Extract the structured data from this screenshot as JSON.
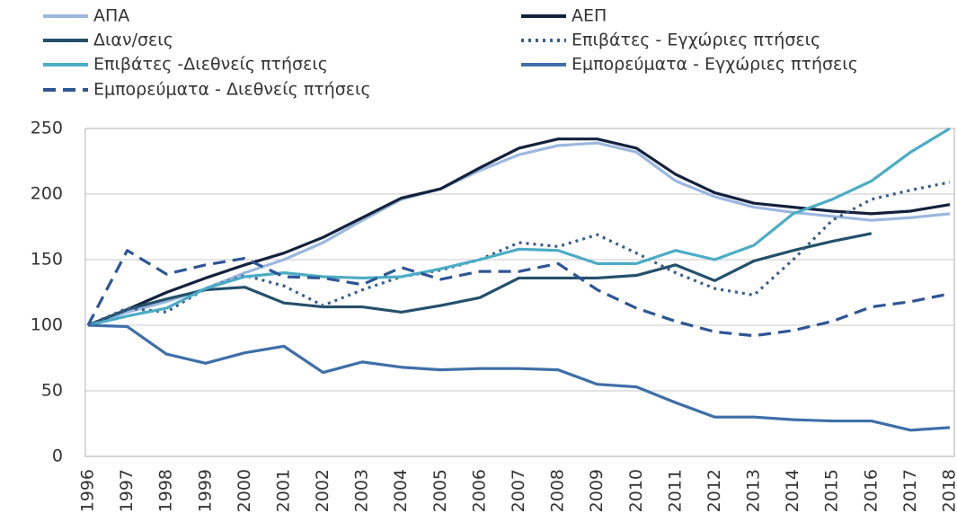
{
  "chart_data": {
    "type": "line",
    "categories": [
      "1996",
      "1997",
      "1998",
      "1999",
      "2000",
      "2001",
      "2002",
      "2003",
      "2004",
      "2005",
      "2006",
      "2007",
      "2008",
      "2009",
      "2010",
      "2011",
      "2012",
      "2013",
      "2014",
      "2015",
      "2016",
      "2017",
      "2018"
    ],
    "series": [
      {
        "name": "ΑΠΑ",
        "color": "#9bb7df",
        "dash": "solid",
        "values": [
          100,
          110,
          118,
          128,
          140,
          150,
          163,
          180,
          196,
          204,
          218,
          230,
          237,
          239,
          232,
          210,
          198,
          190,
          186,
          183,
          180,
          182,
          185
        ]
      },
      {
        "name": "ΑΕΠ",
        "color": "#14213d",
        "dash": "solid",
        "values": [
          100,
          112,
          125,
          136,
          146,
          155,
          167,
          182,
          197,
          204,
          220,
          235,
          242,
          242,
          235,
          215,
          201,
          193,
          190,
          187,
          185,
          187,
          192
        ]
      },
      {
        "name": "Διαν/σεις",
        "color": "#24506a",
        "dash": "solid",
        "values": [
          100,
          112,
          120,
          127,
          129,
          117,
          114,
          114,
          110,
          115,
          121,
          136,
          136,
          136,
          138,
          146,
          134,
          149,
          157,
          164,
          170,
          null,
          null
        ]
      },
      {
        "name": "Επιβάτες - Εγχώριες πτήσεις",
        "color": "#3a5e8c",
        "dash": "dotted",
        "values": [
          100,
          113,
          110,
          128,
          138,
          130,
          115,
          127,
          137,
          142,
          150,
          163,
          160,
          169,
          155,
          140,
          128,
          123,
          150,
          180,
          196,
          203,
          209
        ]
      },
      {
        "name": "Επιβάτες -Διεθνείς πτήσεις",
        "color": "#4bacc6",
        "dash": "solid",
        "values": [
          100,
          107,
          113,
          128,
          137,
          140,
          137,
          136,
          137,
          143,
          150,
          158,
          157,
          147,
          147,
          157,
          150,
          161,
          185,
          196,
          210,
          232,
          250
        ]
      },
      {
        "name": "Εμπορεύματα - Εγχώριες πτήσεις",
        "color": "#3e6fa8",
        "dash": "solid",
        "values": [
          100,
          99,
          78,
          71,
          79,
          84,
          64,
          72,
          68,
          66,
          67,
          67,
          66,
          55,
          53,
          41,
          30,
          30,
          28,
          27,
          27,
          20,
          22
        ]
      },
      {
        "name": "Εμπορεύματα - Διεθνείς πτήσεις",
        "color": "#2e5596",
        "dash": "dashed",
        "values": [
          100,
          157,
          139,
          146,
          151,
          137,
          136,
          131,
          144,
          135,
          141,
          141,
          147,
          127,
          113,
          103,
          95,
          92,
          96,
          103,
          114,
          118,
          124
        ]
      }
    ],
    "ylim": [
      0,
      250
    ],
    "yticks": [
      0,
      50,
      100,
      150,
      200,
      250
    ],
    "grid": true
  }
}
